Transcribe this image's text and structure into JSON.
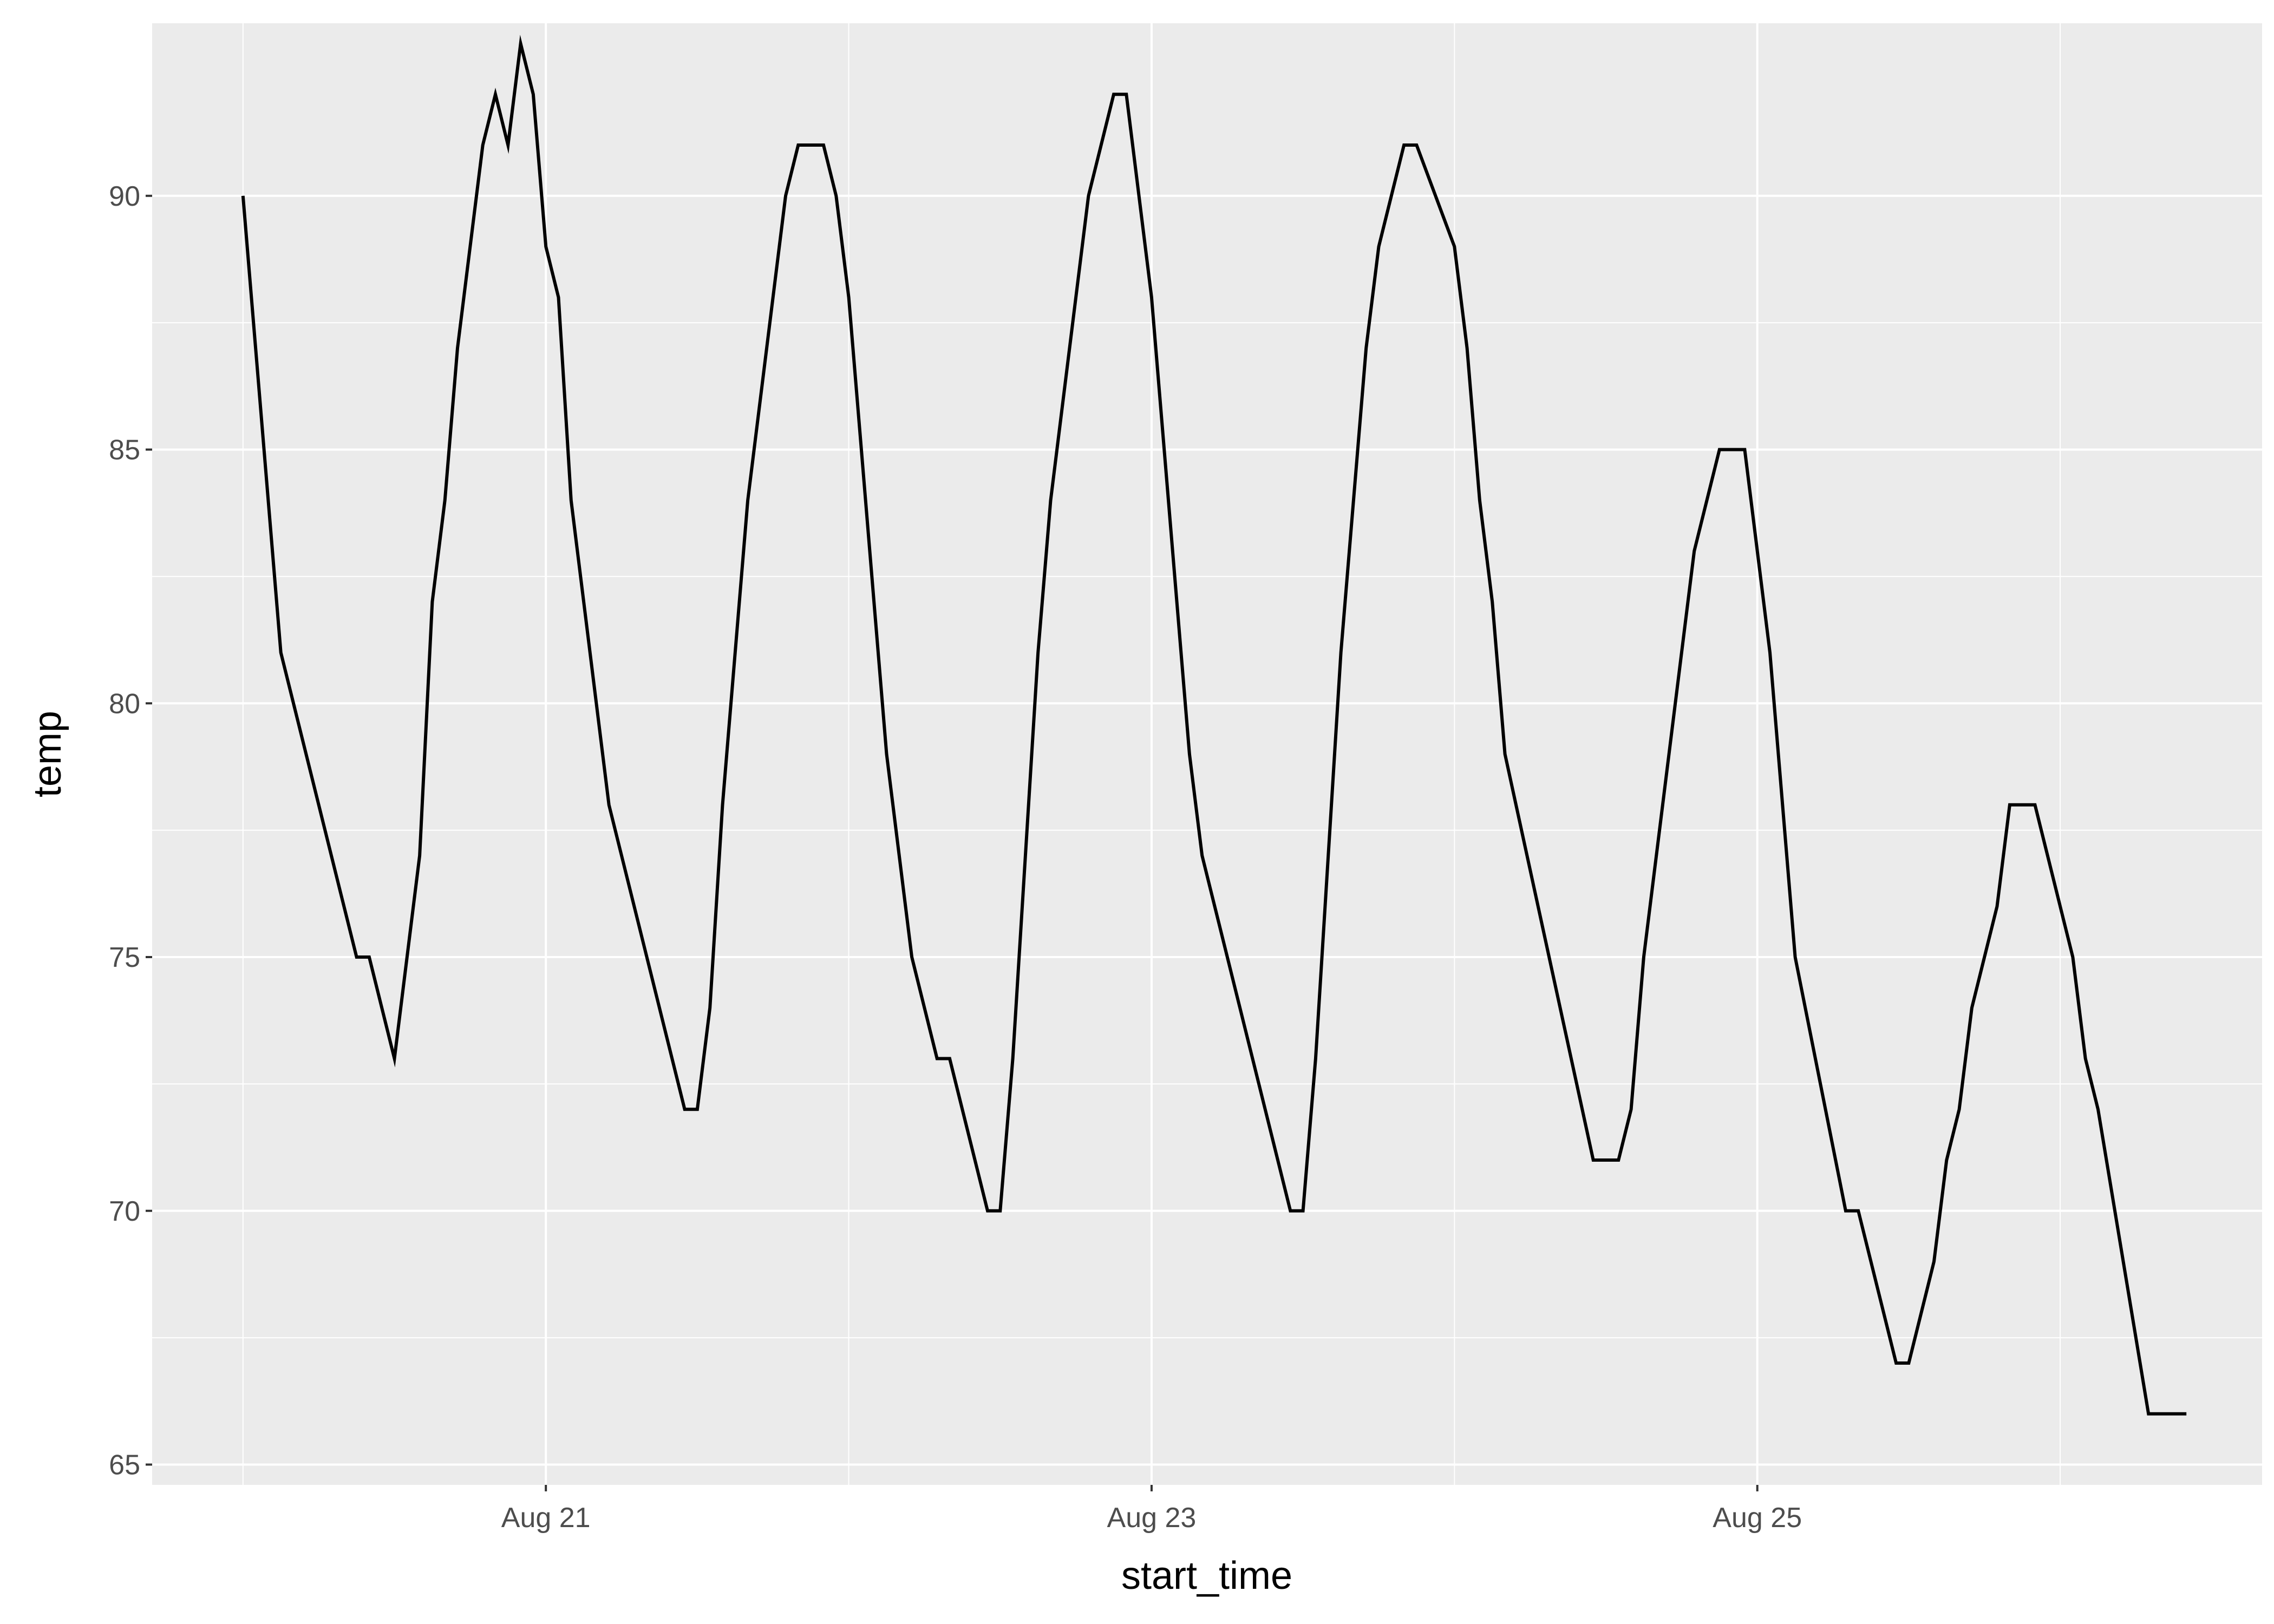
{
  "chart_data": {
    "type": "line",
    "title": "",
    "xlabel": "start_time",
    "ylabel": "temp",
    "x_axis": {
      "kind": "date",
      "ticks": [
        "2024-08-21",
        "2024-08-23",
        "2024-08-25"
      ],
      "tick_labels": [
        "Aug 21",
        "Aug 23",
        "Aug 25"
      ],
      "minor_ticks": [
        "2024-08-20",
        "2024-08-22",
        "2024-08-24",
        "2024-08-26"
      ],
      "xlim": [
        "2024-08-19 16:48",
        "2024-08-26 16:00"
      ]
    },
    "y_axis": {
      "ticks": [
        65,
        70,
        75,
        80,
        85,
        90
      ],
      "tick_labels": [
        "65",
        "70",
        "75",
        "80",
        "85",
        "90"
      ],
      "ylim": [
        64.6,
        93.4
      ]
    },
    "grid": true,
    "legend": "none",
    "colors": {
      "panel": "#ebebeb",
      "grid": "#ffffff",
      "line": "#000000",
      "tick_text": "#4d4d4d"
    },
    "series": [
      {
        "color": "#000000",
        "x": [
          "2024-08-20 00:00",
          "2024-08-20 03:00",
          "2024-08-20 09:00",
          "2024-08-20 10:00",
          "2024-08-20 12:00",
          "2024-08-20 14:00",
          "2024-08-20 15:00",
          "2024-08-20 16:00",
          "2024-08-20 17:00",
          "2024-08-20 19:00",
          "2024-08-20 20:00",
          "2024-08-20 21:00",
          "2024-08-20 22:00",
          "2024-08-20 23:00",
          "2024-08-21 00:00",
          "2024-08-21 01:00",
          "2024-08-21 02:00",
          "2024-08-21 05:00",
          "2024-08-21 11:00",
          "2024-08-21 12:00",
          "2024-08-21 13:00",
          "2024-08-21 14:00",
          "2024-08-21 16:00",
          "2024-08-21 19:00",
          "2024-08-21 20:00",
          "2024-08-21 22:00",
          "2024-08-21 23:00",
          "2024-08-22 00:00",
          "2024-08-22 03:00",
          "2024-08-22 05:00",
          "2024-08-22 07:00",
          "2024-08-22 08:00",
          "2024-08-22 11:00",
          "2024-08-22 12:00",
          "2024-08-22 13:00",
          "2024-08-22 15:00",
          "2024-08-22 16:00",
          "2024-08-22 19:00",
          "2024-08-22 21:00",
          "2024-08-22 22:00",
          "2024-08-23 00:00",
          "2024-08-23 03:00",
          "2024-08-23 04:00",
          "2024-08-23 11:00",
          "2024-08-23 12:00",
          "2024-08-23 13:00",
          "2024-08-23 15:00",
          "2024-08-23 17:00",
          "2024-08-23 18:00",
          "2024-08-23 20:00",
          "2024-08-23 21:00",
          "2024-08-24 00:00",
          "2024-08-24 01:00",
          "2024-08-24 02:00",
          "2024-08-24 03:00",
          "2024-08-24 04:00",
          "2024-08-24 11:00",
          "2024-08-24 13:00",
          "2024-08-24 14:00",
          "2024-08-24 15:00",
          "2024-08-24 19:00",
          "2024-08-24 21:00",
          "2024-08-24 23:00",
          "2024-08-25 00:00",
          "2024-08-25 01:00",
          "2024-08-25 03:00",
          "2024-08-25 07:00",
          "2024-08-25 08:00",
          "2024-08-25 11:00",
          "2024-08-25 12:00",
          "2024-08-25 14:00",
          "2024-08-25 15:00",
          "2024-08-25 16:00",
          "2024-08-25 17:00",
          "2024-08-25 19:00",
          "2024-08-25 20:00",
          "2024-08-25 22:00",
          "2024-08-26 00:00",
          "2024-08-26 01:00",
          "2024-08-26 02:00",
          "2024-08-26 03:00",
          "2024-08-26 07:00",
          "2024-08-26 10:00"
        ],
        "y": [
          90,
          81,
          75,
          75,
          73,
          77,
          82,
          84,
          87,
          91,
          92,
          91,
          93,
          92,
          89,
          88,
          84,
          78,
          72,
          72,
          74,
          78,
          84,
          90,
          91,
          91,
          90,
          88,
          79,
          75,
          73,
          73,
          70,
          70,
          73,
          81,
          84,
          90,
          92,
          92,
          88,
          79,
          77,
          70,
          70,
          73,
          81,
          87,
          89,
          91,
          91,
          89,
          87,
          84,
          82,
          79,
          71,
          71,
          72,
          75,
          83,
          85,
          85,
          83,
          81,
          75,
          70,
          70,
          67,
          67,
          69,
          71,
          72,
          74,
          76,
          78,
          78,
          76,
          75,
          73,
          72,
          66,
          66
        ]
      }
    ]
  }
}
